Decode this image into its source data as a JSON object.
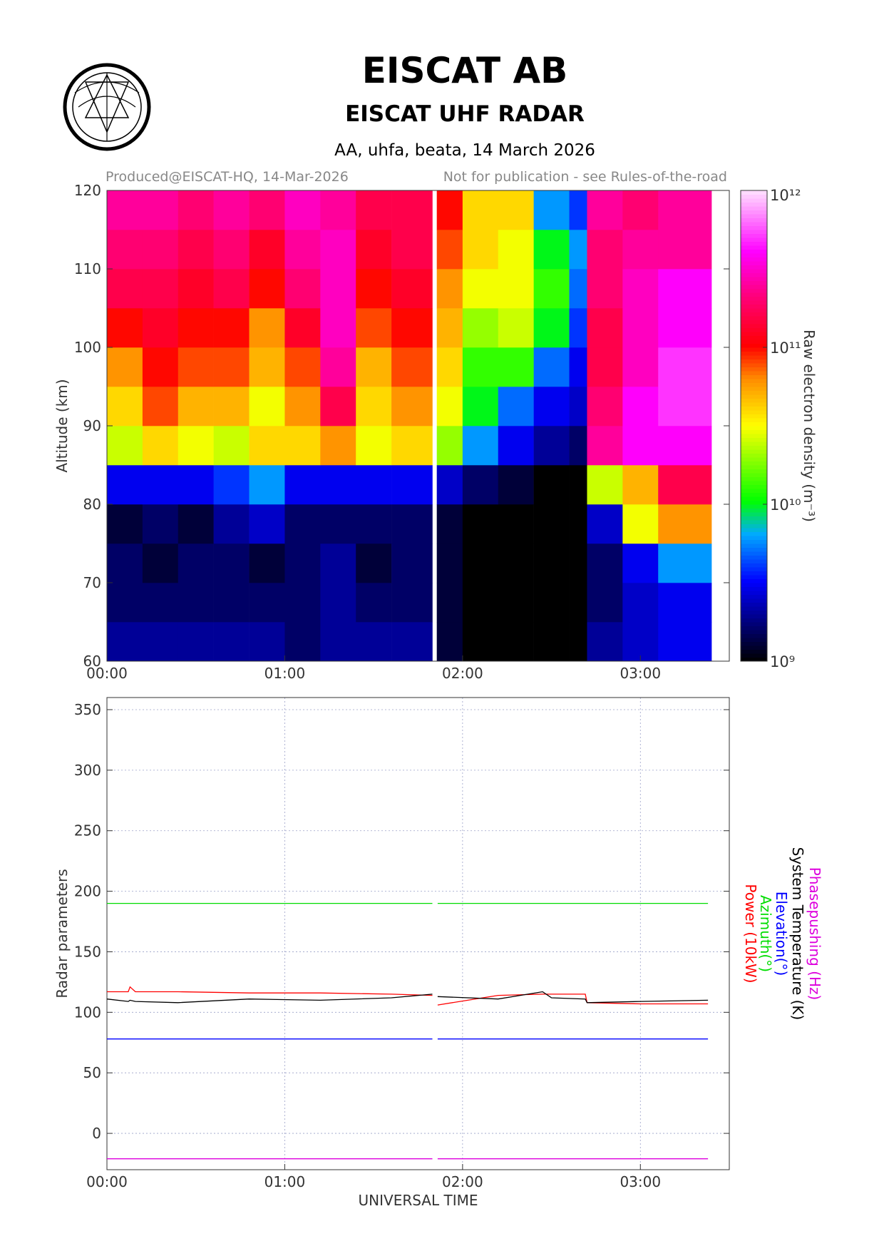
{
  "header": {
    "title": "EISCAT AB",
    "subtitle": "EISCAT UHF RADAR",
    "info": "AA, uhfa, beata, 14 March 2026",
    "produced": "Produced@EISCAT-HQ, 14-Mar-2026",
    "notice": "Not for publication - see Rules-of-the-road"
  },
  "chart_data": [
    {
      "type": "heatmap",
      "ylabel": "Altitude (km)",
      "colorbar_label": "Raw electron density (m⁻³)",
      "x_edges": [
        0,
        0.2,
        0.4,
        0.6,
        0.8,
        1.0,
        1.2,
        1.4,
        1.6,
        1.83,
        1.855,
        2.0,
        2.2,
        2.4,
        2.6,
        2.7,
        2.9,
        3.1,
        3.4
      ],
      "y_edges": [
        60,
        65,
        70,
        75,
        80,
        85,
        90,
        95,
        100,
        105,
        110,
        115,
        120
      ],
      "values": [
        [
          2000000000.0,
          2000000000.0,
          2000000000.0,
          2000000000.0,
          2000000000.0,
          1600000000.0,
          2000000000.0,
          2000000000.0,
          2000000000.0,
          null,
          1300000000.0,
          1000000000.0,
          1000000000.0,
          1000000000.0,
          1000000000.0,
          2000000000.0,
          2500000000.0,
          3000000000.0
        ],
        [
          1600000000.0,
          1600000000.0,
          1600000000.0,
          1600000000.0,
          1600000000.0,
          1600000000.0,
          2000000000.0,
          1600000000.0,
          1600000000.0,
          null,
          1300000000.0,
          1000000000.0,
          1000000000.0,
          1000000000.0,
          1000000000.0,
          1600000000.0,
          2500000000.0,
          3000000000.0
        ],
        [
          1600000000.0,
          1300000000.0,
          1600000000.0,
          1600000000.0,
          1300000000.0,
          1600000000.0,
          2000000000.0,
          1300000000.0,
          1600000000.0,
          null,
          1300000000.0,
          1000000000.0,
          1000000000.0,
          1000000000.0,
          1000000000.0,
          1600000000.0,
          3000000000.0,
          6000000000.0
        ],
        [
          1300000000.0,
          1600000000.0,
          1300000000.0,
          2000000000.0,
          2500000000.0,
          1600000000.0,
          1600000000.0,
          1600000000.0,
          1600000000.0,
          null,
          1300000000.0,
          1000000000.0,
          1000000000.0,
          1000000000.0,
          1000000000.0,
          2500000000.0,
          30000000000.0,
          60000000000.0
        ],
        [
          3000000000.0,
          3000000000.0,
          3000000000.0,
          4000000000.0,
          6000000000.0,
          3000000000.0,
          3000000000.0,
          3000000000.0,
          3000000000.0,
          null,
          2500000000.0,
          1600000000.0,
          1300000000.0,
          1000000000.0,
          1000000000.0,
          25000000000.0,
          50000000000.0,
          160000000000.0
        ],
        [
          25000000000.0,
          40000000000.0,
          30000000000.0,
          25000000000.0,
          40000000000.0,
          40000000000.0,
          60000000000.0,
          30000000000.0,
          40000000000.0,
          null,
          20000000000.0,
          6000000000.0,
          3000000000.0,
          2000000000.0,
          1600000000.0,
          250000000000.0,
          400000000000.0,
          400000000000.0
        ],
        [
          40000000000.0,
          80000000000.0,
          50000000000.0,
          50000000000.0,
          30000000000.0,
          60000000000.0,
          160000000000.0,
          40000000000.0,
          60000000000.0,
          null,
          30000000000.0,
          10000000000.0,
          5000000000.0,
          3000000000.0,
          2500000000.0,
          200000000000.0,
          400000000000.0,
          500000000000.0
        ],
        [
          60000000000.0,
          100000000000.0,
          80000000000.0,
          80000000000.0,
          50000000000.0,
          80000000000.0,
          250000000000.0,
          50000000000.0,
          80000000000.0,
          null,
          40000000000.0,
          13000000000.0,
          13000000000.0,
          5000000000.0,
          3000000000.0,
          160000000000.0,
          300000000000.0,
          500000000000.0
        ],
        [
          100000000000.0,
          130000000000.0,
          100000000000.0,
          100000000000.0,
          60000000000.0,
          130000000000.0,
          300000000000.0,
          80000000000.0,
          100000000000.0,
          null,
          50000000000.0,
          20000000000.0,
          25000000000.0,
          10000000000.0,
          4000000000.0,
          160000000000.0,
          300000000000.0,
          400000000000.0
        ],
        [
          160000000000.0,
          160000000000.0,
          130000000000.0,
          160000000000.0,
          100000000000.0,
          200000000000.0,
          300000000000.0,
          100000000000.0,
          130000000000.0,
          null,
          60000000000.0,
          30000000000.0,
          30000000000.0,
          13000000000.0,
          5000000000.0,
          200000000000.0,
          300000000000.0,
          400000000000.0
        ],
        [
          200000000000.0,
          200000000000.0,
          160000000000.0,
          200000000000.0,
          130000000000.0,
          250000000000.0,
          300000000000.0,
          130000000000.0,
          160000000000.0,
          null,
          80000000000.0,
          40000000000.0,
          30000000000.0,
          10000000000.0,
          6000000000.0,
          200000000000.0,
          250000000000.0,
          250000000000.0
        ],
        [
          250000000000.0,
          250000000000.0,
          200000000000.0,
          250000000000.0,
          200000000000.0,
          300000000000.0,
          250000000000.0,
          160000000000.0,
          160000000000.0,
          null,
          100000000000.0,
          40000000000.0,
          40000000000.0,
          6000000000.0,
          4000000000.0,
          250000000000.0,
          200000000000.0,
          250000000000.0
        ]
      ],
      "xlim": [
        0,
        3.5
      ],
      "xticks": [
        {
          "value": 0,
          "label": "00:00"
        },
        {
          "value": 1,
          "label": "01:00"
        },
        {
          "value": 2,
          "label": "02:00"
        },
        {
          "value": 3,
          "label": "03:00"
        }
      ],
      "ylim": [
        60,
        120
      ],
      "yticks": [
        60,
        70,
        80,
        90,
        100,
        110,
        120
      ],
      "clim": [
        1000000000.0,
        1000000000000.0
      ],
      "color_log": true,
      "cticks": [
        {
          "value": 1000000000.0,
          "label": "10⁹"
        },
        {
          "value": 10000000000.0,
          "label": "10¹⁰"
        },
        {
          "value": 100000000000.0,
          "label": "10¹¹"
        },
        {
          "value": 1000000000000.0,
          "label": "10¹²"
        }
      ]
    },
    {
      "type": "line",
      "ylabel": "Radar parameters",
      "xlabel": "UNIVERSAL TIME",
      "x": [
        0,
        0.12,
        0.13,
        0.16,
        0.4,
        0.8,
        1.2,
        1.6,
        1.83,
        1.845,
        1.86,
        2.2,
        2.45,
        2.5,
        2.69,
        2.7,
        3.0,
        3.38
      ],
      "series": [
        {
          "name": "Power (10kW)",
          "color": "#ff0000",
          "values": [
            117,
            117,
            121,
            117,
            117,
            116,
            116,
            115,
            114,
            null,
            106,
            114,
            115,
            115,
            115,
            108,
            107,
            107
          ]
        },
        {
          "name": "Azimuth(°)",
          "color": "#00dd00",
          "values": [
            190,
            190,
            190,
            190,
            190,
            190,
            190,
            190,
            190,
            null,
            190,
            190,
            190,
            190,
            190,
            190,
            190,
            190
          ]
        },
        {
          "name": "Elevation(°)",
          "color": "#0000ff",
          "values": [
            78,
            78,
            78,
            78,
            78,
            78,
            78,
            78,
            78,
            null,
            78,
            78,
            78,
            78,
            78,
            78,
            78,
            78
          ]
        },
        {
          "name": "System Temperature (K)",
          "color": "#000000",
          "values": [
            111,
            109,
            110,
            109,
            108,
            111,
            110,
            112,
            115,
            null,
            113,
            111,
            117,
            112,
            111,
            108,
            109,
            110
          ]
        },
        {
          "name": "Phasepushing (Hz)",
          "color": "#dd00dd",
          "values": [
            -21,
            -21,
            -21,
            -21,
            -21,
            -21,
            -21,
            -21,
            -21,
            null,
            -21,
            -21,
            -21,
            -21,
            -21,
            -21,
            -21,
            -21
          ]
        }
      ],
      "xlim": [
        0,
        3.5
      ],
      "xticks": [
        {
          "value": 0,
          "label": "00:00"
        },
        {
          "value": 1,
          "label": "01:00"
        },
        {
          "value": 2,
          "label": "02:00"
        },
        {
          "value": 3,
          "label": "03:00"
        }
      ],
      "ylim": [
        -30,
        360
      ],
      "yticks": [
        0,
        50,
        100,
        150,
        200,
        250,
        300,
        350
      ],
      "grid": true
    }
  ]
}
